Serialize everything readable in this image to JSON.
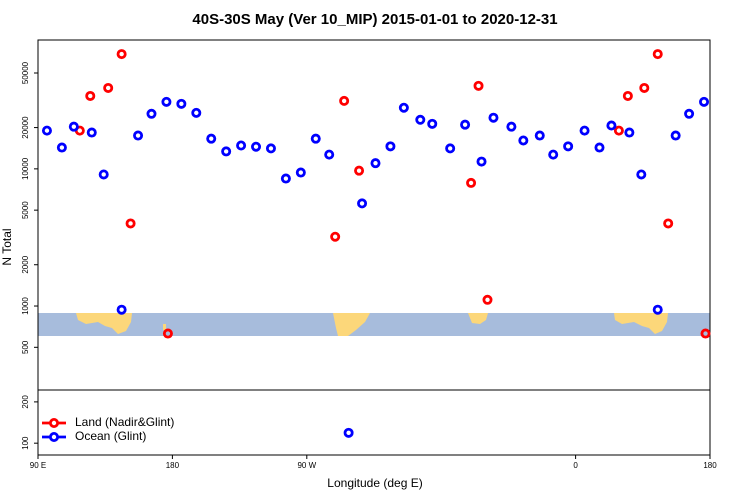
{
  "chart_data": {
    "type": "scatter",
    "title": "40S-30S May (Ver 10_MIP)   2015-01-01 to 2020-12-31",
    "xlabel": "Longitude (deg E)",
    "ylabel": "N Total",
    "log_y": true,
    "xlim": [
      90,
      540
    ],
    "ylim": [
      82,
      87000
    ],
    "xticks": [
      {
        "value": 90,
        "label": "90 E"
      },
      180,
      {
        "value": 270,
        "label": "90 W"
      },
      {
        "value": 450,
        "label": "0"
      },
      {
        "value": 540,
        "label": "180"
      }
    ],
    "yticks": [
      100,
      200,
      500,
      1000,
      2000,
      5000,
      10000,
      20000,
      50000
    ],
    "legend": "lower left",
    "series": [
      {
        "name": "Land (Nadir&Glint)",
        "color": "#ff0000",
        "x": [
          118,
          125,
          137,
          146,
          152,
          177,
          289,
          295,
          305,
          380,
          385,
          391,
          479,
          485,
          496,
          505,
          512,
          537
        ],
        "values": [
          19000,
          34000,
          38900,
          68700,
          4000,
          630,
          3200,
          31300,
          9700,
          7900,
          40300,
          1110,
          19000,
          34000,
          38900,
          68700,
          4000,
          630
        ]
      },
      {
        "name": "Ocean (Glint)",
        "color": "#0000ff",
        "x": [
          96,
          106,
          114,
          126,
          134,
          146,
          157,
          166,
          176,
          186,
          196,
          206,
          216,
          226,
          236,
          246,
          256,
          266,
          276,
          285,
          298,
          307,
          316,
          326,
          335,
          346,
          354,
          366,
          376,
          387,
          395,
          407,
          415,
          426,
          435,
          445,
          456,
          466,
          474,
          486,
          494,
          505,
          517,
          526,
          536
        ],
        "values": [
          19000,
          14300,
          20300,
          18400,
          9100,
          940,
          17500,
          25200,
          30800,
          29800,
          25600,
          16600,
          13400,
          14800,
          14500,
          14100,
          8500,
          9400,
          16600,
          12700,
          119,
          5600,
          11000,
          14600,
          27900,
          22800,
          21300,
          14100,
          21000,
          11300,
          23600,
          20300,
          16100,
          17500,
          12700,
          14600,
          19000,
          14300,
          20700,
          18400,
          9100,
          940,
          17500,
          25200,
          30800
        ]
      }
    ]
  }
}
